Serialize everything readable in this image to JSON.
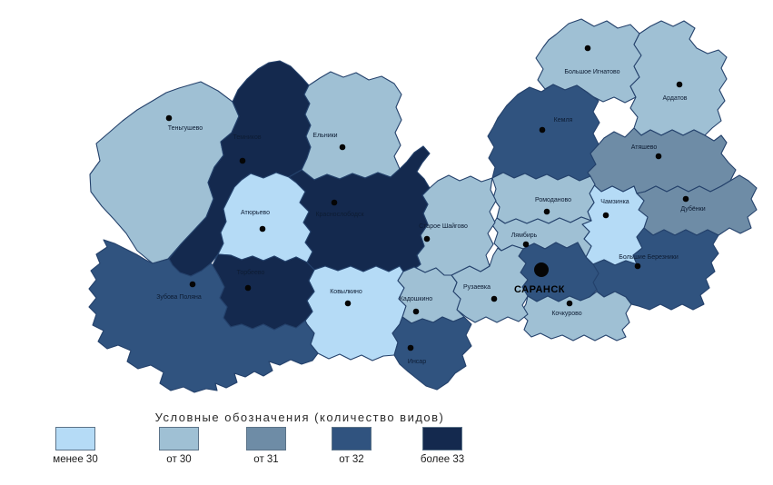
{
  "legend": {
    "title": "Условные обозначения (количество видов)",
    "classes": [
      {
        "label": "менее 30",
        "color": "#b5dbf6"
      },
      {
        "label": "от 30",
        "color": "#9fc0d4"
      },
      {
        "label": "от 31",
        "color": "#6e8ca6"
      },
      {
        "label": "от 32",
        "color": "#30537f"
      },
      {
        "label": "более 33",
        "color": "#14294e"
      }
    ]
  },
  "map": {
    "districts": [
      {
        "id": "tengushevo",
        "name": "Теньгушево",
        "value_class": "от 30"
      },
      {
        "id": "temnikov",
        "name": "Темников",
        "value_class": "более 33"
      },
      {
        "id": "elniki",
        "name": "Ельники",
        "value_class": "от 30"
      },
      {
        "id": "bolshoe-ignatovo",
        "name": "Большое Игнатово",
        "value_class": "от 30"
      },
      {
        "id": "kemlya",
        "name": "Кемля",
        "value_class": "от 32"
      },
      {
        "id": "ardatov",
        "name": "Ардатов",
        "value_class": "от 30"
      },
      {
        "id": "atyashevo",
        "name": "Атяшево",
        "value_class": "от 31"
      },
      {
        "id": "dubyonki",
        "name": "Дубёнки",
        "value_class": "от 31"
      },
      {
        "id": "chamzinka",
        "name": "Чамзинка",
        "value_class": "менее 30"
      },
      {
        "id": "bolshie-berezniki",
        "name": "Большие Березники",
        "value_class": "от 32"
      },
      {
        "id": "romodanovo",
        "name": "Ромоданово",
        "value_class": "от 30"
      },
      {
        "id": "lyambir",
        "name": "Лямбирь",
        "value_class": "от 30"
      },
      {
        "id": "saransk",
        "name": "САРАНСК",
        "value_class": "от 32",
        "is_capital": true
      },
      {
        "id": "kochkurovo",
        "name": "Кочкурово",
        "value_class": "от 30"
      },
      {
        "id": "ruzaevka",
        "name": "Рузаевка",
        "value_class": "от 30"
      },
      {
        "id": "staroe-shaygovo",
        "name": "Старое Шайгово",
        "value_class": "от 30"
      },
      {
        "id": "krasnoslobodsk",
        "name": "Краснослободск",
        "value_class": "более 33"
      },
      {
        "id": "atyurevo",
        "name": "Атюрьево",
        "value_class": "менее 30"
      },
      {
        "id": "kovylkino",
        "name": "Ковылкино",
        "value_class": "менее 30"
      },
      {
        "id": "kadoshkino",
        "name": "Кадошкино",
        "value_class": "от 30"
      },
      {
        "id": "insar",
        "name": "Инсар",
        "value_class": "от 32"
      },
      {
        "id": "torbeevo",
        "name": "Торбеево",
        "value_class": "более 33"
      },
      {
        "id": "zubova-polyana",
        "name": "Зубова Поляна",
        "value_class": "от 32"
      }
    ]
  }
}
